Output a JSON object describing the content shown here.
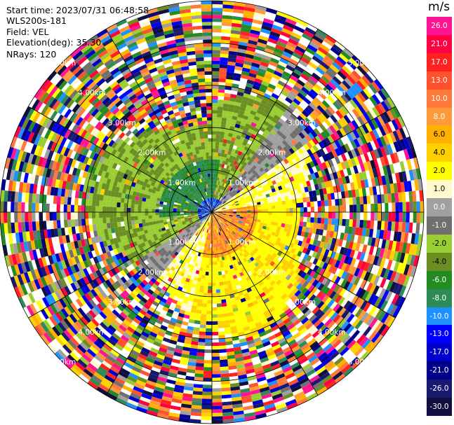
{
  "header": {
    "start_time": "Start time: 2023/07/31 06:48:58",
    "instrument": "WLS200s-181",
    "field": "Field: VEL",
    "elevation": "Elevation(deg): 35.30",
    "nrays": "NRays: 120"
  },
  "chart_data": {
    "type": "polar-ppi",
    "field": "VEL",
    "unit": "m/s",
    "range_rings_km": [
      1,
      2,
      3,
      4,
      5
    ],
    "range_ring_labels": [
      "1.00km",
      "2.00km",
      "3.00km",
      "4.00km",
      "5.00km"
    ],
    "max_range_km": 5,
    "nrays": 120,
    "colorbar": {
      "unit": "m/s",
      "ticks": [
        "26.0",
        "21.0",
        "17.0",
        "13.0",
        "10.0",
        "8.0",
        "6.0",
        "4.0",
        "2.0",
        "1.0",
        "0.0",
        "-1.0",
        "-2.0",
        "-4.0",
        "-6.0",
        "-8.0",
        "-10.0",
        "-13.0",
        "-17.0",
        "-21.0",
        "-26.0",
        "-30.0"
      ],
      "colors": [
        "#ff1493",
        "#ff0040",
        "#ff2020",
        "#ff5030",
        "#ff7a3a",
        "#ff9a3c",
        "#ffb000",
        "#ffd000",
        "#ffff00",
        "#fffacd",
        "#a0a0a0",
        "#707070",
        "#9acd32",
        "#6b8e23",
        "#228b22",
        "#2e8b57",
        "#1e90ff",
        "#0000ff",
        "#0000cd",
        "#00008b",
        "#191970",
        "#101040"
      ]
    }
  }
}
